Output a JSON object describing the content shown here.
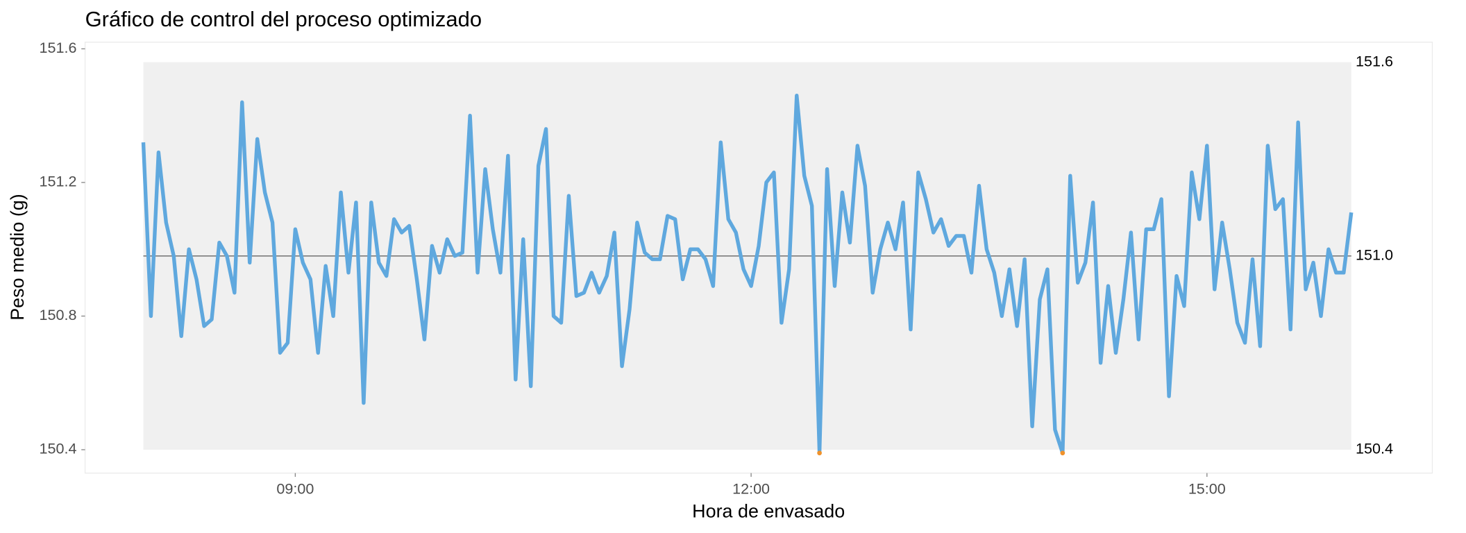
{
  "chart_data": {
    "type": "line",
    "title": "Gráfico de control del proceso optimizado",
    "xlabel": "Hora de envasado",
    "ylabel": "Peso medio (g)",
    "color": "#5fa8de",
    "out_of_control_color": "#f0922b",
    "x": [
      "08:00",
      "08:03",
      "08:06",
      "08:09",
      "08:12",
      "08:15",
      "08:18",
      "08:21",
      "08:24",
      "08:27",
      "08:30",
      "08:33",
      "08:36",
      "08:39",
      "08:42",
      "08:45",
      "08:48",
      "08:51",
      "08:54",
      "08:57",
      "09:00",
      "09:03",
      "09:06",
      "09:09",
      "09:12",
      "09:15",
      "09:18",
      "09:21",
      "09:24",
      "09:27",
      "09:30",
      "09:33",
      "09:36",
      "09:39",
      "09:42",
      "09:45",
      "09:48",
      "09:51",
      "09:54",
      "09:57",
      "10:00",
      "10:03",
      "10:06",
      "10:09",
      "10:12",
      "10:15",
      "10:18",
      "10:21",
      "10:24",
      "10:27",
      "10:30",
      "10:33",
      "10:36",
      "10:39",
      "10:42",
      "10:45",
      "10:48",
      "10:51",
      "10:54",
      "10:57",
      "11:00",
      "11:03",
      "11:06",
      "11:09",
      "11:12",
      "11:15",
      "11:18",
      "11:21",
      "11:24",
      "11:27",
      "11:30",
      "11:33",
      "11:36",
      "11:39",
      "11:42",
      "11:45",
      "11:48",
      "11:51",
      "11:54",
      "11:57",
      "12:00",
      "12:03",
      "12:06",
      "12:09",
      "12:12",
      "12:15",
      "12:18",
      "12:21",
      "12:24",
      "12:27",
      "12:30",
      "12:33",
      "12:36",
      "12:39",
      "12:42",
      "12:45",
      "12:48",
      "12:51",
      "12:54",
      "12:57",
      "13:00",
      "13:03",
      "13:06",
      "13:09",
      "13:12",
      "13:15",
      "13:18",
      "13:21",
      "13:24",
      "13:27",
      "13:30",
      "13:33",
      "13:36",
      "13:39",
      "13:42",
      "13:45",
      "13:48",
      "13:51",
      "13:54",
      "13:57",
      "14:00",
      "14:03",
      "14:06",
      "14:09",
      "14:12",
      "14:15",
      "14:18",
      "14:21",
      "14:24",
      "14:27",
      "14:30",
      "14:33",
      "14:36",
      "14:39",
      "14:42",
      "14:45",
      "14:48",
      "14:51",
      "14:54",
      "14:57",
      "15:00",
      "15:03",
      "15:06",
      "15:09",
      "15:12",
      "15:15",
      "15:18",
      "15:21",
      "15:24",
      "15:27",
      "15:30",
      "15:33",
      "15:36",
      "15:39",
      "15:42",
      "15:45",
      "15:48",
      "15:51",
      "15:54",
      "15:57"
    ],
    "values": [
      151.32,
      150.8,
      151.29,
      151.08,
      150.98,
      150.74,
      151.0,
      150.91,
      150.77,
      150.79,
      151.02,
      150.98,
      150.87,
      151.44,
      150.96,
      151.33,
      151.17,
      151.08,
      150.69,
      150.72,
      151.06,
      150.96,
      150.91,
      150.69,
      150.95,
      150.8,
      151.17,
      150.93,
      151.14,
      150.54,
      151.14,
      150.96,
      150.92,
      151.09,
      151.05,
      151.07,
      150.91,
      150.73,
      151.01,
      150.93,
      151.03,
      150.98,
      150.99,
      151.4,
      150.93,
      151.24,
      151.06,
      150.93,
      151.28,
      150.61,
      151.03,
      150.59,
      151.25,
      151.36,
      150.8,
      150.78,
      151.16,
      150.86,
      150.87,
      150.93,
      150.87,
      150.92,
      151.05,
      150.65,
      150.82,
      151.08,
      150.99,
      150.97,
      150.97,
      151.1,
      151.09,
      150.91,
      151.0,
      151.0,
      150.97,
      150.89,
      151.32,
      151.09,
      151.05,
      150.94,
      150.89,
      151.01,
      151.2,
      151.23,
      150.78,
      150.94,
      151.46,
      151.22,
      151.13,
      150.39,
      151.24,
      150.89,
      151.17,
      151.02,
      151.31,
      151.19,
      150.87,
      151.0,
      151.08,
      151.0,
      151.14,
      150.76,
      151.23,
      151.15,
      151.05,
      151.09,
      151.01,
      151.04,
      151.04,
      150.93,
      151.19,
      151.0,
      150.93,
      150.8,
      150.94,
      150.77,
      150.97,
      150.47,
      150.85,
      150.94,
      150.46,
      150.39,
      151.22,
      150.9,
      150.96,
      151.14,
      150.66,
      150.89,
      150.69,
      150.85,
      151.05,
      150.73,
      151.06,
      151.06,
      151.15,
      150.56,
      150.92,
      150.83,
      151.23,
      151.09,
      151.31,
      150.88,
      151.08,
      150.94,
      150.78,
      150.72,
      150.97,
      150.71,
      151.31,
      151.12,
      151.15,
      150.76,
      151.38,
      150.88,
      150.96,
      150.8,
      151.0,
      150.93,
      150.93,
      151.11
    ],
    "xlim": [
      "07:37",
      "16:29"
    ],
    "xticks": [
      "09:00",
      "12:00",
      "15:00"
    ],
    "ylim": [
      150.33,
      151.62
    ],
    "yticks": [
      150.4,
      150.8,
      151.2,
      151.6
    ],
    "y2lim": [
      150.33,
      151.62
    ],
    "y2ticks": [
      {
        "value": 151.56,
        "label": "151.6"
      },
      {
        "value": 150.98,
        "label": "151.0"
      },
      150.4
    ]
  }
}
